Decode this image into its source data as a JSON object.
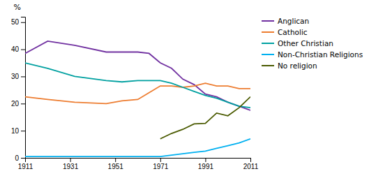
{
  "chart_data": {
    "type": "line",
    "ylabel": "%",
    "x": [
      1911,
      1921,
      1933,
      1947,
      1954,
      1961,
      1966,
      1971,
      1976,
      1981,
      1986,
      1991,
      1996,
      2001,
      2006,
      2011
    ],
    "series": [
      {
        "name": "Anglican",
        "color": "#7030a0",
        "values": [
          38.5,
          43.0,
          41.5,
          39.0,
          39.0,
          39.0,
          38.5,
          35.0,
          33.0,
          29.0,
          27.0,
          23.5,
          22.5,
          20.5,
          19.0,
          17.5
        ]
      },
      {
        "name": "Catholic",
        "color": "#ed7d31",
        "values": [
          22.5,
          21.5,
          20.5,
          20.0,
          21.0,
          21.5,
          24.0,
          26.5,
          26.5,
          26.0,
          26.5,
          27.5,
          26.5,
          26.5,
          25.5,
          25.5
        ]
      },
      {
        "name": "Other Christian",
        "color": "#00a0a0",
        "values": [
          35.0,
          33.0,
          30.0,
          28.5,
          28.0,
          28.5,
          28.5,
          28.5,
          27.5,
          26.0,
          24.5,
          23.0,
          22.0,
          20.5,
          19.0,
          18.5
        ]
      },
      {
        "name": "Non-Christian Religions",
        "color": "#00b0f0",
        "values": [
          0.5,
          0.5,
          0.5,
          0.5,
          0.5,
          0.5,
          0.5,
          0.5,
          1.0,
          1.5,
          2.0,
          2.5,
          3.5,
          4.5,
          5.5,
          7.0
        ]
      },
      {
        "name": "No religion",
        "color": "#4a5a00",
        "values": [
          null,
          null,
          null,
          null,
          null,
          null,
          null,
          7.0,
          9.0,
          10.5,
          12.5,
          12.7,
          16.5,
          15.5,
          18.5,
          22.5
        ]
      }
    ],
    "xlim": [
      1911,
      2011
    ],
    "xticks": [
      1911,
      1931,
      1951,
      1971,
      1991,
      2011
    ],
    "ylim": [
      0,
      52
    ],
    "yticks": [
      0,
      10,
      20,
      30,
      40,
      50
    ],
    "grid": false,
    "legend": "upper right"
  }
}
